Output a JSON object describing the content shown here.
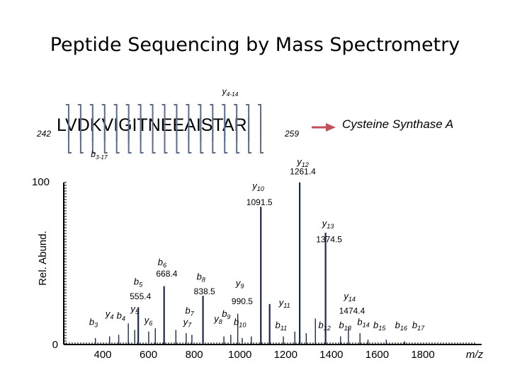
{
  "title": "Peptide Sequencing by Mass Spectrometry",
  "peptide": {
    "sequence": "LVDKVIGITNEEAISTAR",
    "start": "242",
    "end": "259",
    "protein": "Cysteine Synthase A",
    "arrow_color": "#c0505a",
    "bracket_color": "#5a6e8c",
    "y_range_label": "y4-14",
    "b_range_label": "b3-17"
  },
  "chart_data": {
    "type": "spectrum",
    "xlabel": "m/z",
    "ylabel": "Rel. Abund.",
    "xlim": [
      300,
      1900
    ],
    "ylim": [
      0,
      100
    ],
    "x_ticks": [
      400,
      600,
      800,
      1000,
      1200,
      1400,
      1600,
      1800
    ],
    "y_ticks": [
      0,
      100
    ],
    "bar_color": "#1a2a4a",
    "peaks": [
      {
        "mz": 1261.4,
        "intensity": 100
      },
      {
        "mz": 1091.5,
        "intensity": 85
      },
      {
        "mz": 1374.5,
        "intensity": 69
      },
      {
        "mz": 668.4,
        "intensity": 36
      },
      {
        "mz": 838.5,
        "intensity": 30
      },
      {
        "mz": 555.4,
        "intensity": 23
      },
      {
        "mz": 990.5,
        "intensity": 19
      },
      {
        "mz": 1474.4,
        "intensity": 11
      },
      {
        "mz": 1130,
        "intensity": 25
      },
      {
        "mz": 1330,
        "intensity": 16
      },
      {
        "mz": 1525,
        "intensity": 7
      },
      {
        "mz": 512,
        "intensity": 13
      },
      {
        "mz": 540,
        "intensity": 9
      },
      {
        "mz": 470,
        "intensity": 6
      },
      {
        "mz": 430,
        "intensity": 5
      },
      {
        "mz": 368,
        "intensity": 4
      },
      {
        "mz": 601,
        "intensity": 8
      },
      {
        "mz": 630,
        "intensity": 10
      },
      {
        "mz": 720,
        "intensity": 9
      },
      {
        "mz": 765,
        "intensity": 7
      },
      {
        "mz": 790,
        "intensity": 6
      },
      {
        "mz": 930,
        "intensity": 5
      },
      {
        "mz": 960,
        "intensity": 6
      },
      {
        "mz": 1010,
        "intensity": 4
      },
      {
        "mz": 1050,
        "intensity": 5
      },
      {
        "mz": 1190,
        "intensity": 5
      },
      {
        "mz": 1240,
        "intensity": 8
      },
      {
        "mz": 1290,
        "intensity": 7
      },
      {
        "mz": 1440,
        "intensity": 5
      },
      {
        "mz": 1560,
        "intensity": 3
      },
      {
        "mz": 1640,
        "intensity": 3
      },
      {
        "mz": 1720,
        "intensity": 2
      }
    ],
    "annotations": [
      {
        "text": "y",
        "sub": "12",
        "mz": 1275,
        "intensity": 111
      },
      {
        "text": "1261.4",
        "mz": 1275,
        "intensity": 105
      },
      {
        "text": "y",
        "sub": "10",
        "mz": 1080,
        "intensity": 96
      },
      {
        "text": "1091.5",
        "mz": 1085,
        "intensity": 86
      },
      {
        "text": "y",
        "sub": "13",
        "mz": 1385,
        "intensity": 73
      },
      {
        "text": "1374.5",
        "mz": 1390,
        "intensity": 63
      },
      {
        "text": "b",
        "sub": "6",
        "mz": 660,
        "intensity": 49
      },
      {
        "text": "668.4",
        "mz": 680,
        "intensity": 42
      },
      {
        "text": "b",
        "sub": "5",
        "mz": 555,
        "intensity": 37
      },
      {
        "text": "b",
        "sub": "8",
        "mz": 830,
        "intensity": 40
      },
      {
        "text": "y",
        "sub": "9",
        "mz": 1000,
        "intensity": 36
      },
      {
        "text": "838.5",
        "mz": 845,
        "intensity": 31
      },
      {
        "text": "555.4",
        "mz": 565,
        "intensity": 28
      },
      {
        "text": "990.5",
        "mz": 1010,
        "intensity": 25
      },
      {
        "text": "y",
        "sub": "14",
        "mz": 1480,
        "intensity": 28
      },
      {
        "text": "y",
        "sub": "11",
        "mz": 1195,
        "intensity": 24
      },
      {
        "text": "y",
        "sub": "5",
        "mz": 540,
        "intensity": 20
      },
      {
        "text": "b",
        "sub": "7",
        "mz": 780,
        "intensity": 19
      },
      {
        "text": "1474.4",
        "mz": 1490,
        "intensity": 19
      },
      {
        "text": "y",
        "sub": "4",
        "mz": 430,
        "intensity": 17
      },
      {
        "text": "b",
        "sub": "4",
        "mz": 480,
        "intensity": 16
      },
      {
        "text": "b",
        "sub": "9",
        "mz": 940,
        "intensity": 17
      },
      {
        "text": "y",
        "sub": "6",
        "mz": 600,
        "intensity": 13
      },
      {
        "text": "y",
        "sub": "8",
        "mz": 905,
        "intensity": 14
      },
      {
        "text": "b",
        "sub": "3",
        "mz": 360,
        "intensity": 12
      },
      {
        "text": "y",
        "sub": "7",
        "mz": 770,
        "intensity": 12
      },
      {
        "text": "b",
        "sub": "10",
        "mz": 1000,
        "intensity": 12
      },
      {
        "text": "b",
        "sub": "14",
        "mz": 1540,
        "intensity": 12
      },
      {
        "text": "b",
        "sub": "11",
        "mz": 1180,
        "intensity": 10
      },
      {
        "text": "b",
        "sub": "12",
        "mz": 1370,
        "intensity": 10
      },
      {
        "text": "b",
        "sub": "13",
        "mz": 1460,
        "intensity": 10
      },
      {
        "text": "b",
        "sub": "15",
        "mz": 1610,
        "intensity": 10
      },
      {
        "text": "b",
        "sub": "16",
        "mz": 1705,
        "intensity": 10
      },
      {
        "text": "b",
        "sub": "17",
        "mz": 1780,
        "intensity": 10
      }
    ]
  }
}
